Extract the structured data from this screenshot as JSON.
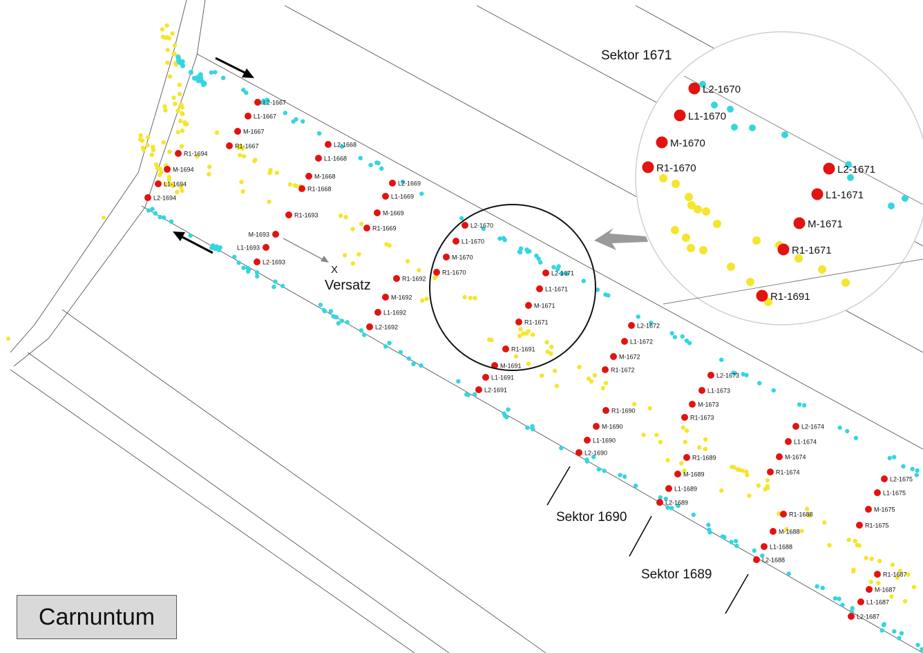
{
  "title": "Carnuntum",
  "colors": {
    "marker": "#e3130f",
    "cyan": "#33d6e0",
    "yellow": "#f5e52c",
    "lines": "#333333",
    "arrow_gray": "#9a9a9a"
  },
  "markers": [
    {
      "id": "L2-1667"
    },
    {
      "id": "L1-1667"
    },
    {
      "id": "M-1667"
    },
    {
      "id": "R1-1667"
    },
    {
      "id": "R1-1694"
    },
    {
      "id": "M-1694"
    },
    {
      "id": "L1-1694"
    },
    {
      "id": "L2-1694"
    },
    {
      "id": "L2-1668"
    },
    {
      "id": "L1-1668"
    },
    {
      "id": "M-1668"
    },
    {
      "id": "R1-1668"
    },
    {
      "id": "R1-1693"
    },
    {
      "id": "M-1693"
    },
    {
      "id": "L1-1693"
    },
    {
      "id": "L2-1693"
    },
    {
      "id": "L2-1669"
    },
    {
      "id": "L1-1669"
    },
    {
      "id": "M-1669"
    },
    {
      "id": "R1-1669"
    },
    {
      "id": "R1-1692"
    },
    {
      "id": "M-1692"
    },
    {
      "id": "L1-1692"
    },
    {
      "id": "L2-1692"
    },
    {
      "id": "L2-1670"
    },
    {
      "id": "L1-1670"
    },
    {
      "id": "M-1670"
    },
    {
      "id": "R1-1670"
    },
    {
      "id": "L2-1671"
    },
    {
      "id": "L1-1671"
    },
    {
      "id": "M-1671"
    },
    {
      "id": "R1-1671"
    },
    {
      "id": "R1-1691"
    },
    {
      "id": "M-1691"
    },
    {
      "id": "L1-1691"
    },
    {
      "id": "L2-1691"
    },
    {
      "id": "L2-1672"
    },
    {
      "id": "L1-1672"
    },
    {
      "id": "M-1672"
    },
    {
      "id": "R1-1672"
    },
    {
      "id": "R1-1690"
    },
    {
      "id": "M-1690"
    },
    {
      "id": "L1-1690"
    },
    {
      "id": "L2-1690"
    },
    {
      "id": "L2-1673"
    },
    {
      "id": "L1-1673"
    },
    {
      "id": "M-1673"
    },
    {
      "id": "R1-1673"
    },
    {
      "id": "R1-1689"
    },
    {
      "id": "M-1689"
    },
    {
      "id": "L1-1689"
    },
    {
      "id": "L2-1689"
    },
    {
      "id": "L2-1674"
    },
    {
      "id": "L1-1674"
    },
    {
      "id": "M-1674"
    },
    {
      "id": "R1-1674"
    },
    {
      "id": "R1-1688"
    },
    {
      "id": "M-1688"
    },
    {
      "id": "L1-1688"
    },
    {
      "id": "L2-1688"
    },
    {
      "id": "L2-1675"
    },
    {
      "id": "L1-1675"
    },
    {
      "id": "M-1675"
    },
    {
      "id": "R1-1675"
    },
    {
      "id": "R1-1687"
    },
    {
      "id": "M-1687"
    },
    {
      "id": "L1-1687"
    },
    {
      "id": "L2-1687"
    }
  ],
  "inset": {
    "heading": "Sektor 1671",
    "markers": [
      "L2-1670",
      "L1-1670",
      "M-1670",
      "R1-1670",
      "L2-1671",
      "L1-1671",
      "M-1671",
      "R1-1671",
      "R1-1691"
    ]
  },
  "annotations": {
    "offset_mark": "X",
    "offset_label": "Versatz",
    "sector_a": "Sektor 1690",
    "sector_b": "Sektor 1689"
  }
}
